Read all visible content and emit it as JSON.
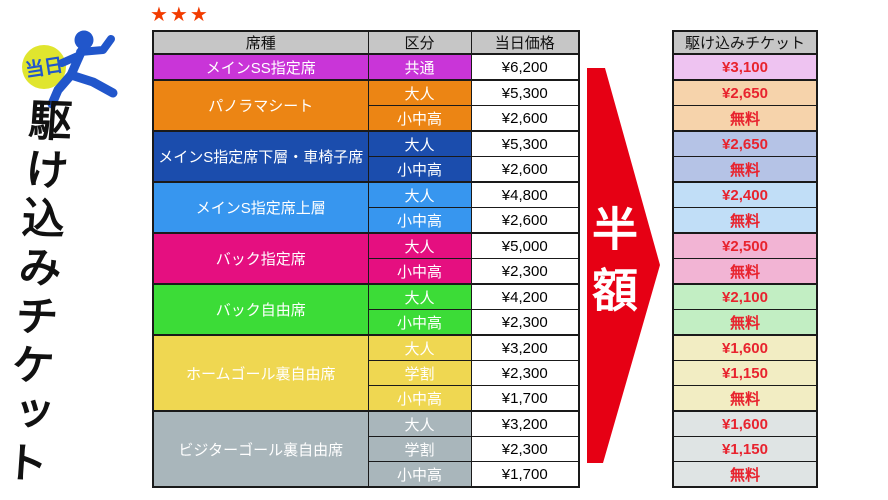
{
  "logo": {
    "badge_text": "当日",
    "title_vertical": "駆け込みチケット"
  },
  "stars": "★★★",
  "table": {
    "headers": {
      "seat": "席種",
      "category": "区分",
      "price": "当日価格"
    },
    "groups": [
      {
        "seat_label": "メインSS指定席",
        "seat_color": "#c935d8",
        "tint_color": "#eec3f1",
        "rows": [
          {
            "category": "共通",
            "price": "¥6,200",
            "discount": "¥3,100"
          }
        ]
      },
      {
        "seat_label": "パノラマシート",
        "seat_color": "#ec8514",
        "tint_color": "#f6d3ab",
        "rows": [
          {
            "category": "大人",
            "price": "¥5,300",
            "discount": "¥2,650"
          },
          {
            "category": "小中高",
            "price": "¥2,600",
            "discount": "無料"
          }
        ]
      },
      {
        "seat_label": "メインS指定席下層・車椅子席",
        "seat_color": "#1b4dad",
        "tint_color": "#b5c3e6",
        "rows": [
          {
            "category": "大人",
            "price": "¥5,300",
            "discount": "¥2,650"
          },
          {
            "category": "小中高",
            "price": "¥2,600",
            "discount": "無料"
          }
        ]
      },
      {
        "seat_label": "メインS指定席上層",
        "seat_color": "#3796ef",
        "tint_color": "#c1def7",
        "rows": [
          {
            "category": "大人",
            "price": "¥4,800",
            "discount": "¥2,400"
          },
          {
            "category": "小中高",
            "price": "¥2,600",
            "discount": "無料"
          }
        ]
      },
      {
        "seat_label": "バック指定席",
        "seat_color": "#e50f80",
        "tint_color": "#f2b4d4",
        "rows": [
          {
            "category": "大人",
            "price": "¥5,000",
            "discount": "¥2,500"
          },
          {
            "category": "小中高",
            "price": "¥2,300",
            "discount": "無料"
          }
        ]
      },
      {
        "seat_label": "バック自由席",
        "seat_color": "#3cdc37",
        "tint_color": "#c2eec3",
        "rows": [
          {
            "category": "大人",
            "price": "¥4,200",
            "discount": "¥2,100"
          },
          {
            "category": "小中高",
            "price": "¥2,300",
            "discount": "無料"
          }
        ]
      },
      {
        "seat_label": "ホームゴール裏自由席",
        "seat_color": "#efd751",
        "tint_color": "#f2edc3",
        "rows": [
          {
            "category": "大人",
            "price": "¥3,200",
            "discount": "¥1,600"
          },
          {
            "category": "学割",
            "price": "¥2,300",
            "discount": "¥1,150"
          },
          {
            "category": "小中高",
            "price": "¥1,700",
            "discount": "無料"
          }
        ]
      },
      {
        "seat_label": "ビジターゴール裏自由席",
        "seat_color": "#a9b6bb",
        "tint_color": "#dfe4e4",
        "rows": [
          {
            "category": "大人",
            "price": "¥3,200",
            "discount": "¥1,600"
          },
          {
            "category": "学割",
            "price": "¥2,300",
            "discount": "¥1,150"
          },
          {
            "category": "小中高",
            "price": "¥1,700",
            "discount": "無料"
          }
        ]
      }
    ]
  },
  "arrow": {
    "label": "半額"
  },
  "right_column": {
    "header": "駆け込みチケット",
    "text_color": "#e8232e"
  },
  "colors": {
    "header_bg": "#c6c6c6",
    "border": "#1a1a1a",
    "star": "#f23b00",
    "arrow_red": "#e60014",
    "badge_yellow": "#e0e52e",
    "brand_blue": "#2156cb",
    "discount_text": "#e8232e"
  }
}
